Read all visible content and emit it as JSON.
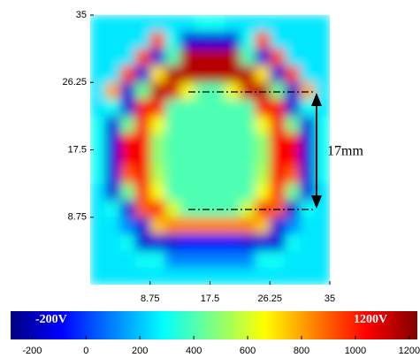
{
  "chart_data": {
    "type": "heatmap",
    "xlim": [
      0,
      35
    ],
    "ylim": [
      0,
      35
    ],
    "xticks": [
      8.75,
      17.5,
      26.25,
      35
    ],
    "yticks": [
      8.75,
      17.5,
      26.25,
      35
    ],
    "z": [
      [
        250,
        250,
        250,
        250,
        250,
        250,
        250,
        300,
        300,
        250,
        250,
        250,
        250,
        250,
        250,
        250
      ],
      [
        250,
        250,
        250,
        250,
        950,
        300,
        -150,
        -150,
        -150,
        -150,
        300,
        950,
        250,
        250,
        250,
        250
      ],
      [
        250,
        250,
        250,
        950,
        -150,
        400,
        1150,
        1150,
        1150,
        1150,
        400,
        -150,
        950,
        250,
        250,
        250
      ],
      [
        250,
        250,
        950,
        -150,
        700,
        1150,
        1150,
        1150,
        1150,
        1150,
        1150,
        700,
        -150,
        950,
        250,
        250
      ],
      [
        250,
        800,
        -150,
        450,
        1150,
        1100,
        650,
        400,
        400,
        650,
        1100,
        1150,
        450,
        -150,
        800,
        250
      ],
      [
        250,
        300,
        -150,
        1050,
        1050,
        400,
        400,
        400,
        400,
        400,
        400,
        1050,
        1050,
        -150,
        300,
        250
      ],
      [
        300,
        -150,
        450,
        1050,
        650,
        400,
        400,
        400,
        400,
        400,
        400,
        650,
        1050,
        450,
        -150,
        300
      ],
      [
        300,
        -150,
        1050,
        1050,
        500,
        400,
        400,
        400,
        400,
        400,
        400,
        500,
        1050,
        1050,
        -150,
        300
      ],
      [
        300,
        -150,
        1050,
        1050,
        500,
        400,
        400,
        400,
        400,
        400,
        400,
        500,
        1050,
        1050,
        -150,
        300
      ],
      [
        300,
        -150,
        900,
        1050,
        550,
        400,
        400,
        400,
        400,
        400,
        400,
        550,
        1050,
        900,
        -150,
        300
      ],
      [
        250,
        -150,
        450,
        1000,
        650,
        400,
        400,
        400,
        400,
        400,
        400,
        650,
        1000,
        450,
        -150,
        250
      ],
      [
        250,
        300,
        -150,
        900,
        1000,
        600,
        400,
        400,
        400,
        400,
        600,
        1000,
        900,
        -150,
        300,
        250
      ],
      [
        250,
        250,
        100,
        -150,
        750,
        850,
        850,
        850,
        850,
        850,
        850,
        750,
        -150,
        100,
        250,
        250
      ],
      [
        250,
        250,
        300,
        -150,
        -150,
        -150,
        -100,
        -100,
        -100,
        -100,
        -150,
        -150,
        -150,
        300,
        250,
        250
      ],
      [
        250,
        250,
        250,
        300,
        300,
        100,
        100,
        100,
        100,
        100,
        100,
        300,
        300,
        250,
        250,
        250
      ],
      [
        250,
        250,
        250,
        250,
        250,
        250,
        250,
        250,
        250,
        250,
        250,
        250,
        250,
        250,
        250,
        250
      ]
    ],
    "colormap": "jet",
    "clim": [
      -280,
      1230
    ],
    "cticks": [
      -200,
      0,
      200,
      400,
      600,
      800,
      1000,
      1200
    ],
    "annotation": "17mm",
    "colorbar_labels": [
      "-200V",
      "1200V"
    ]
  }
}
